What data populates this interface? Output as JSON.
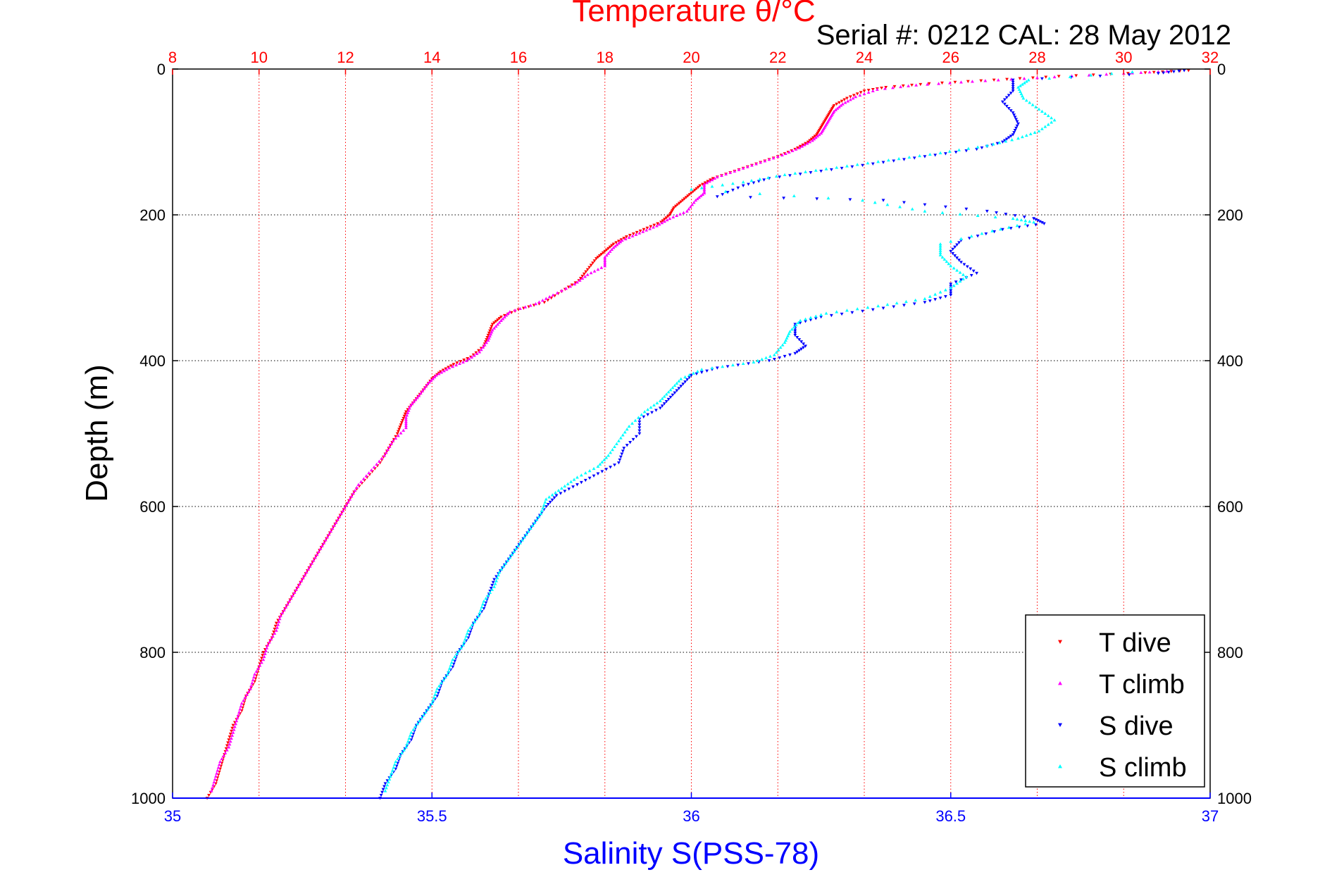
{
  "colors": {
    "temperature_axis": "#ff0000",
    "salinity_axis": "#0000ff",
    "t_dive": "#ff0000",
    "t_climb": "#ff00ff",
    "s_dive": "#0000ff",
    "s_climb": "#00ffff",
    "grid": "#000000"
  },
  "chart_data": {
    "type": "scatter",
    "title": "Temperature θ/°C",
    "subtitle": "Serial #: 0212  CAL: 28 May 2012",
    "xlabel": "Salinity S(PSS-78)",
    "ylabel": "Depth (m)",
    "grid": true,
    "legend_position": "bottom-right",
    "y_reversed": true,
    "ylim": [
      0,
      1000
    ],
    "y_ticks": [
      "0",
      "200",
      "400",
      "600",
      "800",
      "1000"
    ],
    "x_bottom": {
      "lim": [
        35,
        37
      ],
      "ticks": [
        "35",
        "35.5",
        "36",
        "36.5",
        "37"
      ]
    },
    "x_top": {
      "lim": [
        8,
        32
      ],
      "ticks": [
        "8",
        "10",
        "12",
        "14",
        "16",
        "18",
        "20",
        "22",
        "24",
        "26",
        "28",
        "30",
        "32"
      ]
    },
    "series": [
      {
        "name": "T dive",
        "axis": "temperature",
        "marker": "triangle-down",
        "points": [
          [
            31.5,
            2
          ],
          [
            30.5,
            5
          ],
          [
            28.5,
            10
          ],
          [
            27.0,
            15
          ],
          [
            25.5,
            20
          ],
          [
            24.5,
            25
          ],
          [
            24.0,
            30
          ],
          [
            23.6,
            40
          ],
          [
            23.3,
            50
          ],
          [
            23.2,
            60
          ],
          [
            23.1,
            70
          ],
          [
            23.0,
            80
          ],
          [
            22.9,
            90
          ],
          [
            22.7,
            100
          ],
          [
            22.4,
            110
          ],
          [
            22.0,
            120
          ],
          [
            21.5,
            130
          ],
          [
            21.0,
            140
          ],
          [
            20.5,
            150
          ],
          [
            20.2,
            160
          ],
          [
            20.0,
            170
          ],
          [
            19.8,
            180
          ],
          [
            19.6,
            190
          ],
          [
            19.5,
            200
          ],
          [
            19.3,
            210
          ],
          [
            18.9,
            220
          ],
          [
            18.5,
            230
          ],
          [
            18.2,
            240
          ],
          [
            18.0,
            250
          ],
          [
            17.8,
            260
          ],
          [
            17.6,
            275
          ],
          [
            17.4,
            290
          ],
          [
            17.0,
            305
          ],
          [
            16.6,
            320
          ],
          [
            16.0,
            330
          ],
          [
            15.6,
            340
          ],
          [
            15.4,
            350
          ],
          [
            15.3,
            365
          ],
          [
            15.2,
            380
          ],
          [
            14.9,
            395
          ],
          [
            14.5,
            405
          ],
          [
            14.2,
            415
          ],
          [
            14.0,
            425
          ],
          [
            13.8,
            440
          ],
          [
            13.6,
            455
          ],
          [
            13.4,
            470
          ],
          [
            13.3,
            485
          ],
          [
            13.2,
            500
          ],
          [
            13.0,
            520
          ],
          [
            12.8,
            540
          ],
          [
            12.5,
            560
          ],
          [
            12.2,
            580
          ],
          [
            12.0,
            600
          ],
          [
            11.8,
            620
          ],
          [
            11.6,
            640
          ],
          [
            11.4,
            660
          ],
          [
            11.2,
            680
          ],
          [
            11.0,
            700
          ],
          [
            10.8,
            720
          ],
          [
            10.6,
            740
          ],
          [
            10.4,
            760
          ],
          [
            10.3,
            780
          ],
          [
            10.1,
            800
          ],
          [
            10.0,
            820
          ],
          [
            9.9,
            840
          ],
          [
            9.7,
            860
          ],
          [
            9.6,
            880
          ],
          [
            9.4,
            900
          ],
          [
            9.3,
            920
          ],
          [
            9.2,
            940
          ],
          [
            9.1,
            960
          ],
          [
            9.0,
            980
          ],
          [
            8.8,
            1000
          ]
        ]
      },
      {
        "name": "T climb",
        "axis": "temperature",
        "marker": "triangle-up",
        "points": [
          [
            31.0,
            3
          ],
          [
            30.0,
            6
          ],
          [
            28.0,
            12
          ],
          [
            26.5,
            17
          ],
          [
            25.2,
            22
          ],
          [
            24.3,
            28
          ],
          [
            23.8,
            38
          ],
          [
            23.5,
            48
          ],
          [
            23.3,
            58
          ],
          [
            23.2,
            68
          ],
          [
            23.1,
            78
          ],
          [
            23.0,
            88
          ],
          [
            22.8,
            98
          ],
          [
            22.5,
            108
          ],
          [
            22.1,
            118
          ],
          [
            21.6,
            128
          ],
          [
            21.1,
            138
          ],
          [
            20.6,
            148
          ],
          [
            20.3,
            158
          ],
          [
            20.3,
            170
          ],
          [
            20.1,
            180
          ],
          [
            19.9,
            195
          ],
          [
            19.5,
            205
          ],
          [
            19.2,
            215
          ],
          [
            18.8,
            225
          ],
          [
            18.4,
            235
          ],
          [
            18.2,
            245
          ],
          [
            18.0,
            258
          ],
          [
            18.0,
            270
          ],
          [
            17.6,
            282
          ],
          [
            17.3,
            295
          ],
          [
            16.8,
            310
          ],
          [
            16.4,
            322
          ],
          [
            15.8,
            333
          ],
          [
            15.6,
            345
          ],
          [
            15.4,
            358
          ],
          [
            15.3,
            372
          ],
          [
            15.1,
            388
          ],
          [
            14.8,
            400
          ],
          [
            14.4,
            410
          ],
          [
            14.1,
            420
          ],
          [
            13.9,
            432
          ],
          [
            13.7,
            448
          ],
          [
            13.5,
            462
          ],
          [
            13.4,
            478
          ],
          [
            13.4,
            492
          ],
          [
            13.1,
            510
          ],
          [
            12.9,
            530
          ],
          [
            12.6,
            550
          ],
          [
            12.3,
            570
          ],
          [
            12.1,
            590
          ],
          [
            11.9,
            610
          ],
          [
            11.7,
            630
          ],
          [
            11.5,
            650
          ],
          [
            11.3,
            670
          ],
          [
            11.1,
            690
          ],
          [
            10.9,
            710
          ],
          [
            10.7,
            730
          ],
          [
            10.5,
            750
          ],
          [
            10.4,
            770
          ],
          [
            10.2,
            790
          ],
          [
            10.1,
            810
          ],
          [
            9.9,
            830
          ],
          [
            9.8,
            850
          ],
          [
            9.6,
            870
          ],
          [
            9.5,
            890
          ],
          [
            9.4,
            910
          ],
          [
            9.3,
            930
          ],
          [
            9.1,
            950
          ],
          [
            9.0,
            970
          ],
          [
            8.9,
            990
          ]
        ]
      },
      {
        "name": "S dive",
        "axis": "salinity",
        "marker": "triangle-down",
        "points": [
          [
            36.95,
            2
          ],
          [
            36.9,
            6
          ],
          [
            36.62,
            15
          ],
          [
            36.62,
            30
          ],
          [
            36.6,
            45
          ],
          [
            36.62,
            60
          ],
          [
            36.63,
            75
          ],
          [
            36.62,
            90
          ],
          [
            36.6,
            100
          ],
          [
            36.55,
            110
          ],
          [
            36.45,
            120
          ],
          [
            36.35,
            130
          ],
          [
            36.25,
            140
          ],
          [
            36.15,
            150
          ],
          [
            36.1,
            160
          ],
          [
            36.05,
            175
          ],
          [
            36.37,
            180
          ],
          [
            36.57,
            195
          ],
          [
            36.66,
            205
          ],
          [
            36.68,
            212
          ],
          [
            36.6,
            220
          ],
          [
            36.52,
            235
          ],
          [
            36.5,
            250
          ],
          [
            36.52,
            265
          ],
          [
            36.55,
            280
          ],
          [
            36.5,
            295
          ],
          [
            36.5,
            310
          ],
          [
            36.45,
            320
          ],
          [
            36.35,
            330
          ],
          [
            36.25,
            340
          ],
          [
            36.2,
            350
          ],
          [
            36.2,
            365
          ],
          [
            36.22,
            380
          ],
          [
            36.2,
            390
          ],
          [
            36.15,
            400
          ],
          [
            36.05,
            410
          ],
          [
            36.0,
            420
          ],
          [
            35.98,
            435
          ],
          [
            35.96,
            450
          ],
          [
            35.94,
            465
          ],
          [
            35.9,
            480
          ],
          [
            35.9,
            500
          ],
          [
            35.87,
            520
          ],
          [
            35.86,
            540
          ],
          [
            35.82,
            555
          ],
          [
            35.78,
            570
          ],
          [
            35.74,
            585
          ],
          [
            35.72,
            600
          ],
          [
            35.7,
            620
          ],
          [
            35.68,
            640
          ],
          [
            35.66,
            660
          ],
          [
            35.64,
            680
          ],
          [
            35.62,
            700
          ],
          [
            35.61,
            720
          ],
          [
            35.6,
            740
          ],
          [
            35.58,
            760
          ],
          [
            35.57,
            780
          ],
          [
            35.55,
            800
          ],
          [
            35.54,
            820
          ],
          [
            35.52,
            840
          ],
          [
            35.51,
            860
          ],
          [
            35.49,
            880
          ],
          [
            35.47,
            900
          ],
          [
            35.46,
            920
          ],
          [
            35.44,
            940
          ],
          [
            35.43,
            960
          ],
          [
            35.41,
            980
          ],
          [
            35.4,
            1000
          ]
        ]
      },
      {
        "name": "S climb",
        "axis": "salinity",
        "marker": "triangle-up",
        "points": [
          [
            36.85,
            4
          ],
          [
            36.65,
            15
          ],
          [
            36.63,
            25
          ],
          [
            36.64,
            40
          ],
          [
            36.67,
            55
          ],
          [
            36.7,
            70
          ],
          [
            36.67,
            85
          ],
          [
            36.63,
            95
          ],
          [
            36.57,
            105
          ],
          [
            36.48,
            115
          ],
          [
            36.38,
            125
          ],
          [
            36.28,
            135
          ],
          [
            36.18,
            145
          ],
          [
            36.1,
            155
          ],
          [
            36.0,
            165
          ],
          [
            36.33,
            180
          ],
          [
            36.45,
            195
          ],
          [
            36.62,
            205
          ],
          [
            36.66,
            210
          ],
          [
            36.58,
            222
          ],
          [
            36.48,
            240
          ],
          [
            36.48,
            255
          ],
          [
            36.5,
            270
          ],
          [
            36.53,
            285
          ],
          [
            36.5,
            300
          ],
          [
            36.45,
            315
          ],
          [
            36.36,
            325
          ],
          [
            36.26,
            335
          ],
          [
            36.21,
            345
          ],
          [
            36.19,
            360
          ],
          [
            36.18,
            375
          ],
          [
            36.16,
            392
          ],
          [
            36.12,
            402
          ],
          [
            36.02,
            412
          ],
          [
            35.98,
            425
          ],
          [
            35.96,
            440
          ],
          [
            35.94,
            455
          ],
          [
            35.91,
            470
          ],
          [
            35.88,
            490
          ],
          [
            35.86,
            510
          ],
          [
            35.84,
            530
          ],
          [
            35.82,
            545
          ],
          [
            35.78,
            560
          ],
          [
            35.75,
            575
          ],
          [
            35.72,
            590
          ],
          [
            35.71,
            610
          ],
          [
            35.69,
            630
          ],
          [
            35.67,
            650
          ],
          [
            35.65,
            670
          ],
          [
            35.63,
            690
          ],
          [
            35.62,
            710
          ],
          [
            35.6,
            730
          ],
          [
            35.59,
            750
          ],
          [
            35.57,
            770
          ],
          [
            35.56,
            790
          ],
          [
            35.54,
            810
          ],
          [
            35.53,
            830
          ],
          [
            35.51,
            850
          ],
          [
            35.5,
            870
          ],
          [
            35.48,
            890
          ],
          [
            35.46,
            910
          ],
          [
            35.45,
            930
          ],
          [
            35.43,
            950
          ],
          [
            35.42,
            970
          ],
          [
            35.41,
            990
          ]
        ]
      }
    ]
  }
}
